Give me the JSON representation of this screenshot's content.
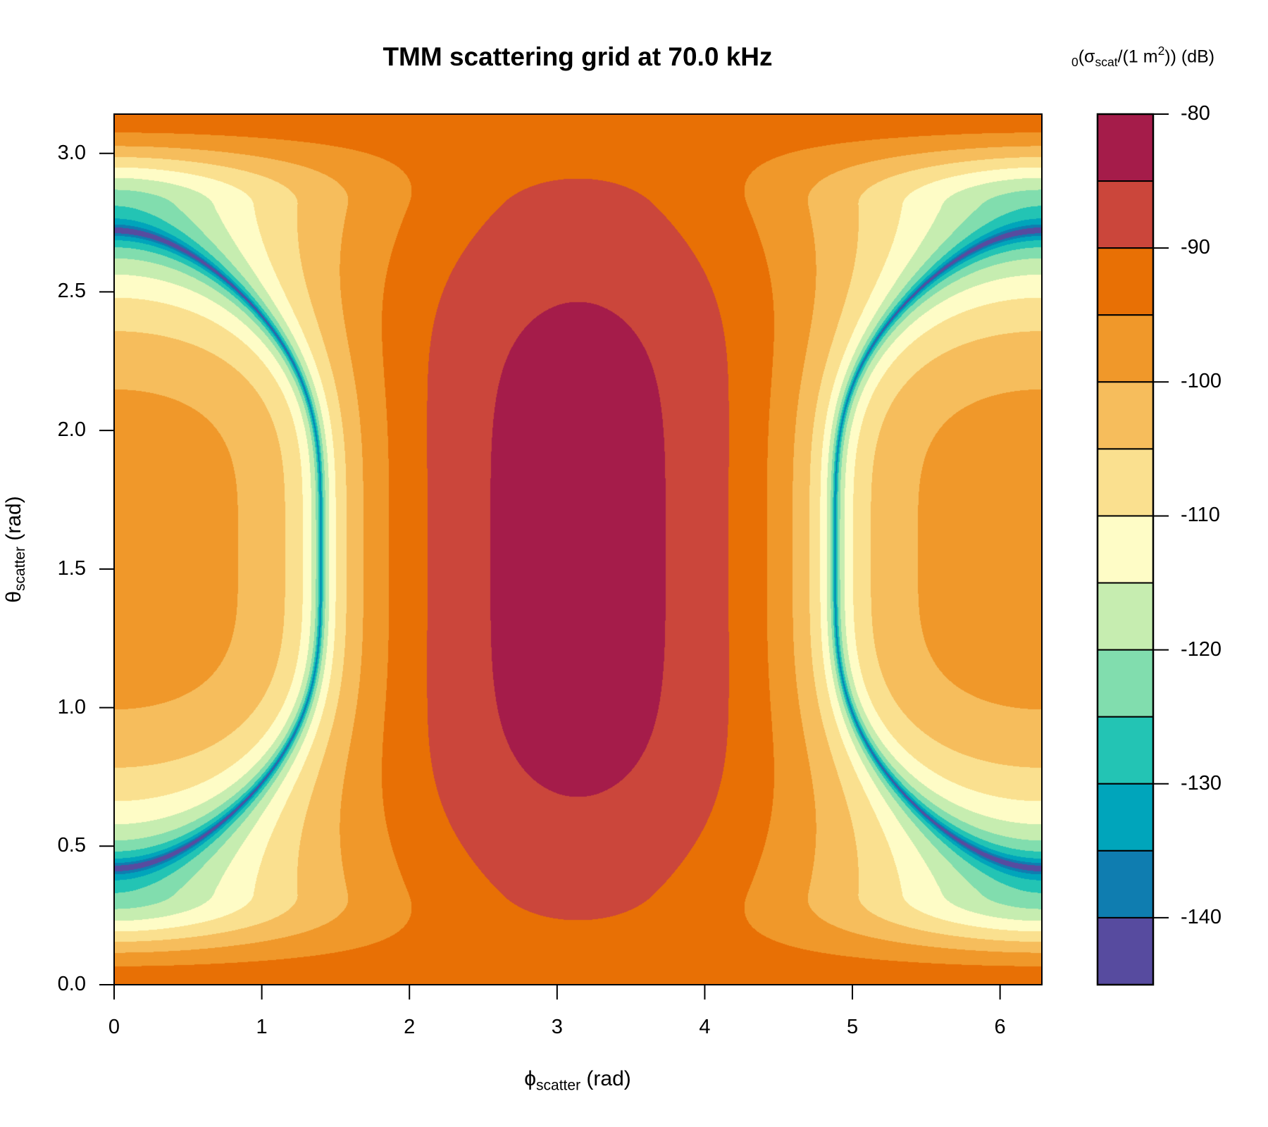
{
  "chart_data": {
    "type": "heatmap",
    "style": "filled-contour",
    "title": "TMM scattering grid at 70.0 kHz",
    "xlabel": {
      "symbol": "ϕ",
      "sub": "scatter",
      "unit": " (rad)"
    },
    "ylabel": {
      "symbol": "θ",
      "sub": "scatter",
      "unit": " (rad)"
    },
    "xlim": [
      0,
      6.2832
    ],
    "ylim": [
      0,
      3.1416
    ],
    "x_ticks": [
      "0",
      "1",
      "2",
      "3",
      "4",
      "5",
      "6"
    ],
    "y_ticks": [
      "0.0",
      "0.5",
      "1.0",
      "1.5",
      "2.0",
      "2.5",
      "3.0"
    ],
    "colorbar": {
      "label": {
        "pre_sub": "0",
        "a": "(σ",
        "sub": "scat",
        "b": "/(1 m",
        "sup": "2",
        "c": ")) (dB)"
      },
      "range": [
        -145,
        -80
      ],
      "ticks": [
        "-80",
        "-90",
        "-100",
        "-110",
        "-120",
        "-130",
        "-140"
      ],
      "levels": [
        -80,
        -85,
        -90,
        -95,
        -100,
        -105,
        -110,
        -115,
        -120,
        -125,
        -130,
        -135,
        -140,
        -145
      ],
      "colors": [
        "#A51C4A",
        "#CB463B",
        "#E87005",
        "#F0982A",
        "#F6BD5C",
        "#FAE08F",
        "#FEFCC6",
        "#C6EDB0",
        "#81DDAE",
        "#23C4B4",
        "#00A5BB",
        "#0F7DB0",
        "#574B9F"
      ]
    },
    "field_description_values": {
      "max_db_near": {
        "phi": 3.14,
        "theta": 1.57,
        "band": [
          -85,
          -80
        ]
      },
      "null_ring_phi_at_theta_1_57": [
        1.4,
        4.88
      ],
      "null_ring_theta_at_phi_0": [
        0.42,
        2.72
      ]
    }
  }
}
